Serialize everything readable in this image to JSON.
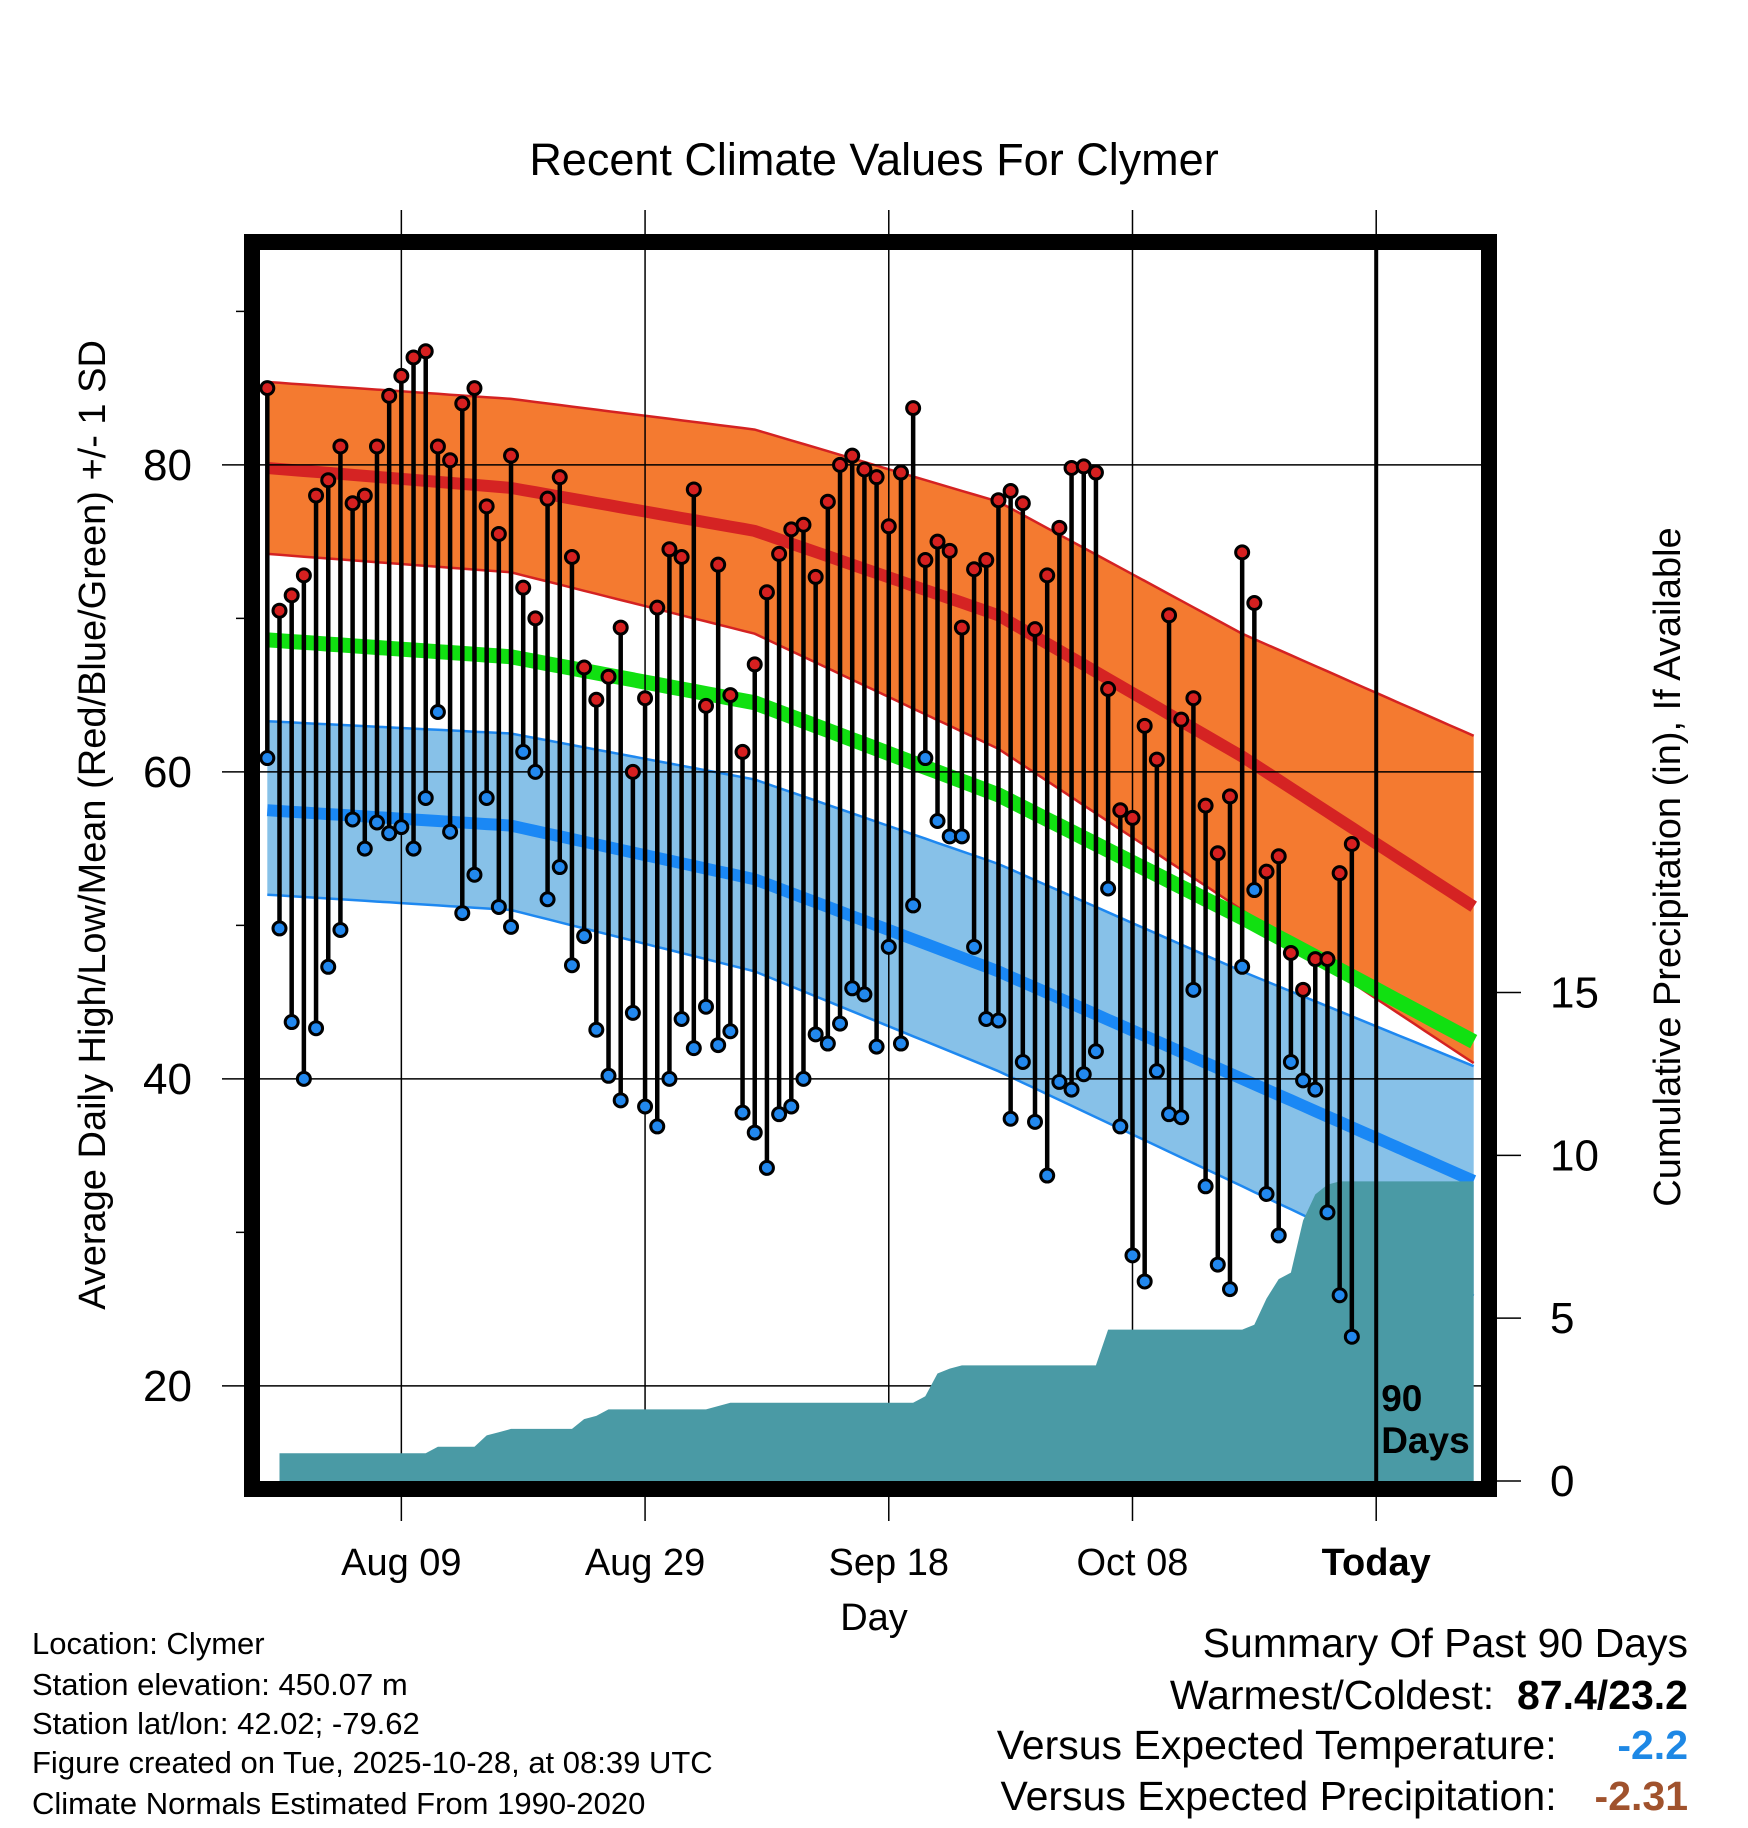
{
  "chart_data": {
    "type": "line",
    "title": "Recent Climate Values For Clymer",
    "xlabel": "Day",
    "ylabel_left": "Average Daily High/Low/Mean (Red/Blue/Green) +/- 1 SD",
    "ylabel_right": "Cumulative Precipitation (in), If Available",
    "x_tick_labels": [
      "Aug 09",
      "Aug 29",
      "Sep 18",
      "Oct 08",
      "Today"
    ],
    "x_tick_days": [
      11,
      31,
      51,
      71,
      91
    ],
    "xlim": [
      -0.6,
      99.6
    ],
    "ylim_left": [
      13.8,
      94
    ],
    "y_ticks_left": [
      20,
      40,
      60,
      80
    ],
    "ylim_right": [
      0,
      37.8
    ],
    "y_ticks_right": [
      0,
      5,
      10,
      15
    ],
    "today_marker_label": "90 Days",
    "today_day": 91,
    "normals": {
      "day": [
        0,
        20,
        40,
        60,
        80,
        100
      ],
      "high_mean": [
        79.8,
        78.5,
        75.7,
        70.2,
        61.0,
        50.7
      ],
      "high_upper": [
        85.4,
        84.3,
        82.3,
        77.6,
        69.0,
        62.0
      ],
      "high_lower": [
        74.2,
        73.0,
        69.0,
        61.5,
        51.0,
        40.5
      ],
      "low_mean": [
        57.5,
        56.5,
        53.0,
        47.0,
        40.0,
        33.0
      ],
      "low_upper": [
        63.3,
        62.5,
        59.5,
        54.0,
        47.0,
        40.5
      ],
      "low_lower": [
        52.0,
        51.0,
        47.0,
        40.5,
        33.0,
        25.5
      ],
      "avg_mean": [
        68.6,
        67.5,
        64.5,
        58.5,
        50.5,
        42.0
      ]
    },
    "series": [
      {
        "name": "Daily High",
        "color": "#d62020",
        "values": [
          85.0,
          70.5,
          71.5,
          72.8,
          78.0,
          79.0,
          81.2,
          77.5,
          78.0,
          81.2,
          84.5,
          85.8,
          87.0,
          87.4,
          81.2,
          80.3,
          84.0,
          85.0,
          77.3,
          75.5,
          80.6,
          72.0,
          70.0,
          77.8,
          79.2,
          74.0,
          66.8,
          64.7,
          66.2,
          69.4,
          60.0,
          64.8,
          70.7,
          74.5,
          74.0,
          78.4,
          64.3,
          73.5,
          65.0,
          61.3,
          67.0,
          71.7,
          74.2,
          75.8,
          76.1,
          72.7,
          77.6,
          80.0,
          80.6,
          79.7,
          79.2,
          76.0,
          79.5,
          83.7,
          73.8,
          75.0,
          74.4,
          69.4,
          73.2,
          73.8,
          77.7,
          78.3,
          77.5,
          69.3,
          72.8,
          75.9,
          79.8,
          79.9,
          79.5,
          65.4,
          57.5,
          57.0,
          63.0,
          60.8,
          70.2,
          63.4,
          64.8,
          57.8,
          54.7,
          58.4,
          74.3,
          71.0,
          53.5,
          54.5,
          48.2,
          45.8,
          47.8,
          47.8,
          53.4,
          55.3
        ]
      },
      {
        "name": "Daily Low",
        "color": "#2288ee",
        "values": [
          60.9,
          49.8,
          43.7,
          40.0,
          43.3,
          47.3,
          49.7,
          56.9,
          55.0,
          56.7,
          56.0,
          56.4,
          55.0,
          58.3,
          63.9,
          56.1,
          50.8,
          53.3,
          58.3,
          51.2,
          49.9,
          61.3,
          60.0,
          51.7,
          53.8,
          47.4,
          49.3,
          43.2,
          40.2,
          38.6,
          44.3,
          38.2,
          36.9,
          40.0,
          43.9,
          42.0,
          44.7,
          42.2,
          43.1,
          37.8,
          36.5,
          34.2,
          37.7,
          38.2,
          40.0,
          42.9,
          42.3,
          43.6,
          45.9,
          45.5,
          42.1,
          48.6,
          42.3,
          51.3,
          60.9,
          56.8,
          55.8,
          55.8,
          48.6,
          43.9,
          43.8,
          37.4,
          41.1,
          37.2,
          33.7,
          39.8,
          39.3,
          40.3,
          41.8,
          52.4,
          36.9,
          28.5,
          26.8,
          40.5,
          37.7,
          37.5,
          45.8,
          33.0,
          27.9,
          26.3,
          47.3,
          52.3,
          32.5,
          29.8,
          41.1,
          39.9,
          39.3,
          31.3,
          25.9,
          23.2
        ]
      },
      {
        "name": "Cumulative Precipitation",
        "color": "#4a9aa5",
        "precip_days": [
          1,
          13,
          14,
          17,
          18,
          19,
          20,
          21,
          25,
          26,
          27,
          28,
          36,
          38,
          53,
          54,
          55,
          56,
          57,
          68,
          69,
          79,
          80,
          81,
          82,
          83,
          84,
          85,
          86,
          87,
          88,
          99
        ],
        "values": [
          0.85,
          0.85,
          1.05,
          1.05,
          1.4,
          1.5,
          1.6,
          1.6,
          1.6,
          1.9,
          2.0,
          2.2,
          2.2,
          2.4,
          2.4,
          2.6,
          3.3,
          3.45,
          3.55,
          3.55,
          4.65,
          4.65,
          4.65,
          4.8,
          5.6,
          6.2,
          6.4,
          8.0,
          8.8,
          9.1,
          9.2,
          9.2
        ]
      }
    ]
  },
  "info": {
    "location": "Location: Clymer",
    "elevation": "Station elevation: 450.07 m",
    "latlon": "Station lat/lon: 42.02; -79.62",
    "created": "Figure created on Tue, 2025-10-28, at 08:39 UTC",
    "normals": "Climate Normals Estimated From 1990-2020"
  },
  "summary": {
    "title": "Summary Of Past 90 Days",
    "extremes_label": "Warmest/Coldest:",
    "extremes_value": "87.4/23.2",
    "temp_label": "Versus Expected Temperature:",
    "temp_value": "-2.2",
    "temp_color": "#1e88e5",
    "precip_label": "Versus Expected Precipitation:",
    "precip_value": "-2.31",
    "precip_color": "#a0522d"
  }
}
